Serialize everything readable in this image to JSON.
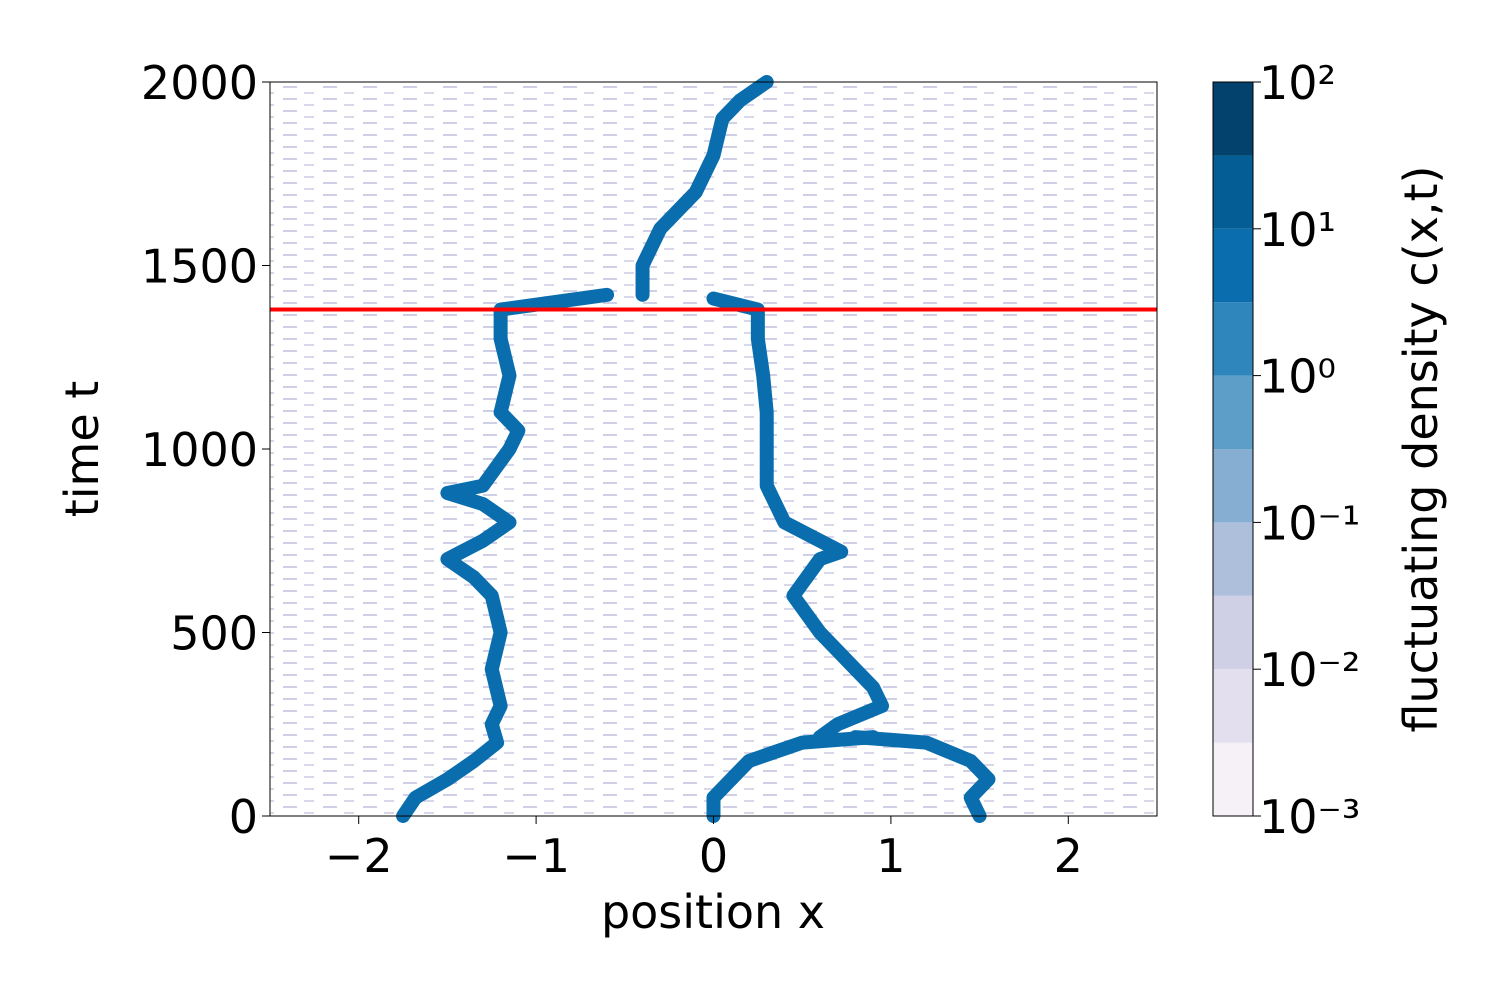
{
  "chart_data": {
    "type": "density-contour",
    "xlabel": "position x",
    "ylabel": "time t",
    "xlim": [
      -2.5,
      2.5
    ],
    "ylim": [
      0,
      2000
    ],
    "xticks": [
      {
        "value": -2,
        "label": "−2"
      },
      {
        "value": -1,
        "label": "−1"
      },
      0,
      1,
      2
    ],
    "yticks": [
      0,
      500,
      1000,
      1500,
      2000
    ],
    "track_color": "#0a6eae",
    "tracks": [
      {
        "t": [
          0,
          50,
          100,
          150,
          200,
          250,
          300,
          400,
          500,
          600,
          650,
          700,
          750,
          800,
          850,
          880,
          900,
          1000,
          1050,
          1100,
          1200,
          1300,
          1380,
          1420
        ],
        "x": [
          -1.75,
          -1.68,
          -1.5,
          -1.35,
          -1.22,
          -1.25,
          -1.2,
          -1.25,
          -1.2,
          -1.25,
          -1.35,
          -1.5,
          -1.3,
          -1.15,
          -1.3,
          -1.5,
          -1.3,
          -1.15,
          -1.1,
          -1.2,
          -1.15,
          -1.2,
          -1.2,
          -0.6
        ]
      },
      {
        "t": [
          0,
          50,
          100,
          150,
          200,
          215
        ],
        "x": [
          0.0,
          0.0,
          0.1,
          0.2,
          0.5,
          0.9
        ]
      },
      {
        "t": [
          0,
          50,
          100,
          150,
          200,
          215
        ],
        "x": [
          1.5,
          1.45,
          1.55,
          1.45,
          1.2,
          0.8
        ]
      },
      {
        "t": [
          215,
          250,
          300,
          350,
          400,
          450,
          500,
          600,
          700,
          720,
          800,
          900,
          1000,
          1100,
          1200,
          1300,
          1380,
          1410
        ],
        "x": [
          0.6,
          0.7,
          0.95,
          0.9,
          0.8,
          0.7,
          0.6,
          0.45,
          0.6,
          0.72,
          0.4,
          0.3,
          0.3,
          0.3,
          0.28,
          0.25,
          0.25,
          0.0
        ]
      },
      {
        "t": [
          1420,
          1500,
          1600,
          1700,
          1800,
          1900,
          1950,
          2000
        ],
        "x": [
          -0.4,
          -0.4,
          -0.3,
          -0.1,
          0.0,
          0.05,
          0.15,
          0.3
        ]
      }
    ],
    "hline": 1380,
    "hline_color": "#ff0000",
    "colorbar": {
      "label": "fluctuating density c(x,t)",
      "log": true,
      "levels": [
        0.001,
        0.00316,
        0.01,
        0.0316,
        0.1,
        0.316,
        1,
        3.16,
        10,
        31.6,
        100
      ],
      "colors": [
        "#f6f0f7",
        "#e3dfee",
        "#cfcfe5",
        "#aebfdc",
        "#86aed2",
        "#5d9ec8",
        "#2f86bd",
        "#0a6eae",
        "#045d94",
        "#03426d"
      ],
      "ticks": [
        {
          "value": 0.001,
          "label": "10⁻³"
        },
        {
          "value": 0.01,
          "label": "10⁻²"
        },
        {
          "value": 0.1,
          "label": "10⁻¹"
        },
        {
          "value": 1,
          "label": "10⁰"
        },
        {
          "value": 10,
          "label": "10¹"
        },
        {
          "value": 100,
          "label": "10²"
        }
      ]
    }
  }
}
